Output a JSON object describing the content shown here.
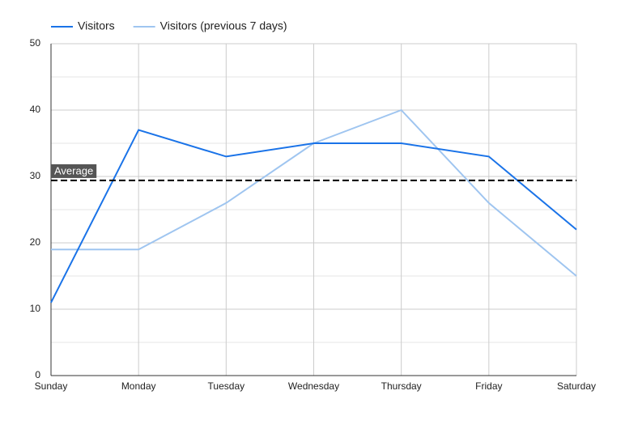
{
  "chart_data": {
    "type": "line",
    "categories": [
      "Sunday",
      "Monday",
      "Tuesday",
      "Wednesday",
      "Thursday",
      "Friday",
      "Saturday"
    ],
    "series": [
      {
        "name": "Visitors",
        "color": "#1a73e8",
        "values": [
          11,
          37,
          33,
          35,
          35,
          33,
          22
        ]
      },
      {
        "name": "Visitors (previous 7 days)",
        "color": "#9fc5f0",
        "values": [
          19,
          19,
          26,
          35,
          40,
          26,
          15
        ]
      }
    ],
    "ylim": [
      0,
      50
    ],
    "yticks": [
      0,
      10,
      20,
      30,
      40,
      50
    ],
    "grid": true,
    "reference_line": {
      "label": "Average",
      "value": 29.4,
      "color": "#000000"
    }
  }
}
